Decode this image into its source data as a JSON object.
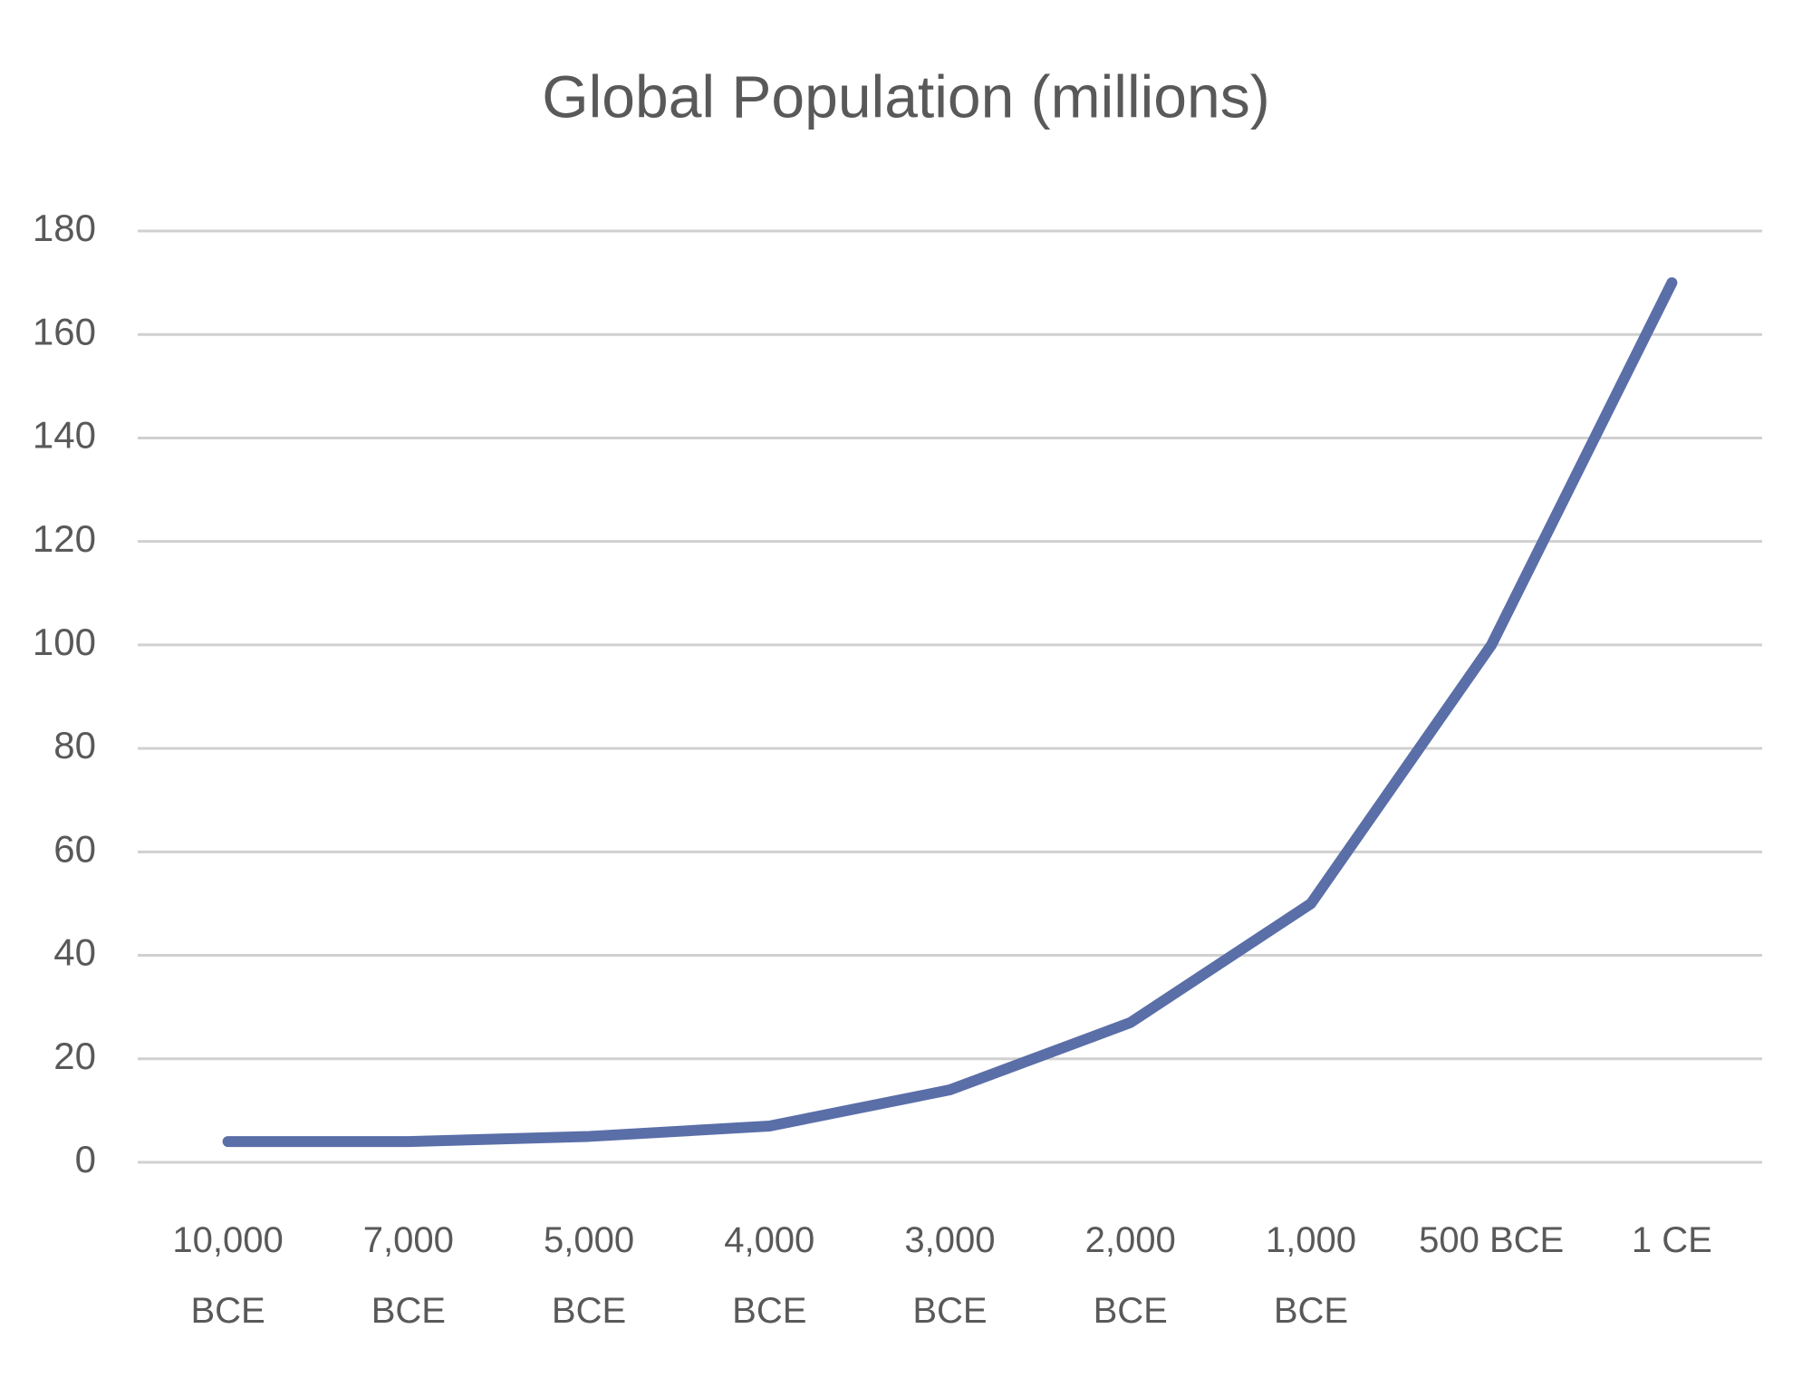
{
  "chart_data": {
    "type": "line",
    "title": "Global Population (millions)",
    "categories": [
      "10,000 BCE",
      "7,000 BCE",
      "5,000 BCE",
      "4,000 BCE",
      "3,000 BCE",
      "2,000 BCE",
      "1,000 BCE",
      "500 BCE",
      "1 CE"
    ],
    "values": [
      4,
      4,
      5,
      7,
      14,
      27,
      50,
      100,
      170
    ],
    "color": "#5a6ea8",
    "ylim": [
      0,
      180
    ],
    "yticks": [
      0,
      20,
      40,
      60,
      80,
      100,
      120,
      140,
      160,
      180
    ],
    "grid": true
  }
}
